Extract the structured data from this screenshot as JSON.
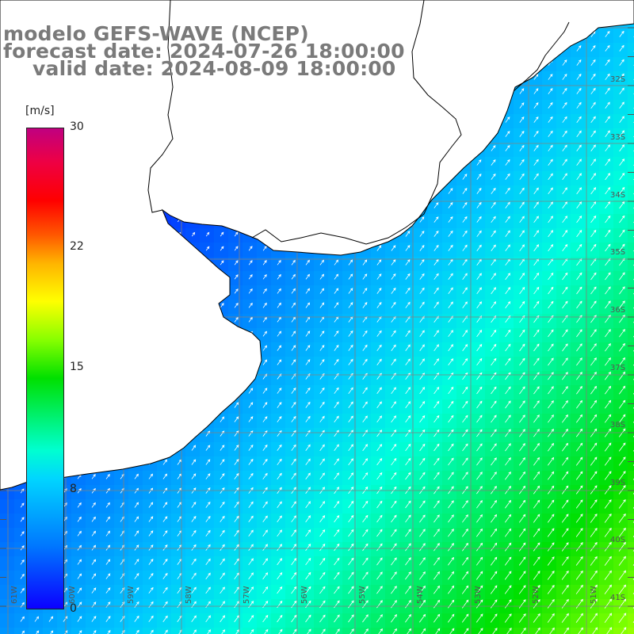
{
  "title": {
    "line1": "modelo GEFS-WAVE (NCEP)",
    "line2": "forecast date: 2024-07-26 18:00:00",
    "line3": "valid date: 2024-08-09 18:00:00"
  },
  "colorbar": {
    "unit": "[m/s]",
    "ticks": [
      "30",
      "22",
      "15",
      "8",
      "0"
    ],
    "tick_values": [
      30,
      22,
      15,
      8,
      0
    ],
    "colors": [
      "#0b00ff",
      "#0077ff",
      "#00d5ff",
      "#00e000",
      "#ffff00",
      "#ff0000",
      "#c00080"
    ]
  },
  "map": {
    "lat_labels": [
      "32S",
      "33S",
      "34S",
      "35S",
      "36S",
      "37S",
      "38S",
      "39S",
      "40S",
      "41S"
    ],
    "lon_labels": [
      "61W",
      "60W",
      "59W",
      "58W",
      "57W",
      "56W",
      "55W",
      "54W",
      "53W",
      "52W",
      "51W"
    ],
    "land_color": "#ffffff",
    "coast_color": "#000000",
    "grid_color": "#808080",
    "arrow_color": "#ffffff"
  }
}
